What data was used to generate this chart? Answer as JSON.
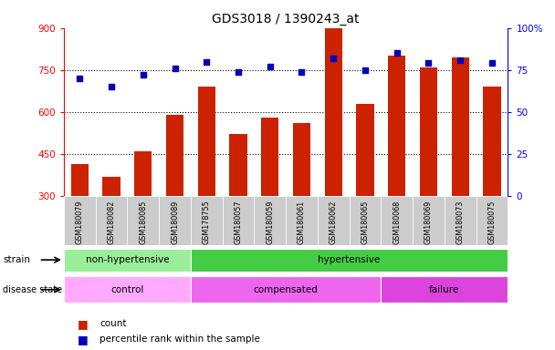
{
  "title": "GDS3018 / 1390243_at",
  "samples": [
    "GSM180079",
    "GSM180082",
    "GSM180085",
    "GSM180089",
    "GSM178755",
    "GSM180057",
    "GSM180059",
    "GSM180061",
    "GSM180062",
    "GSM180065",
    "GSM180068",
    "GSM180069",
    "GSM180073",
    "GSM180075"
  ],
  "counts": [
    415,
    370,
    460,
    590,
    690,
    520,
    580,
    560,
    900,
    630,
    800,
    760,
    795,
    690
  ],
  "percentile_ranks": [
    70,
    65,
    72,
    76,
    80,
    74,
    77,
    74,
    82,
    75,
    85,
    79,
    81,
    79
  ],
  "strain_groups": [
    {
      "label": "non-hypertensive",
      "start": 0,
      "end": 4,
      "color": "#99EE99"
    },
    {
      "label": "hypertensive",
      "start": 4,
      "end": 14,
      "color": "#44CC44"
    }
  ],
  "disease_groups": [
    {
      "label": "control",
      "start": 0,
      "end": 4,
      "color": "#FFAAFF"
    },
    {
      "label": "compensated",
      "start": 4,
      "end": 10,
      "color": "#EE66EE"
    },
    {
      "label": "failure",
      "start": 10,
      "end": 14,
      "color": "#DD44DD"
    }
  ],
  "bar_color": "#CC2200",
  "dot_color": "#0000BB",
  "ylim_left": [
    300,
    900
  ],
  "ylim_right": [
    0,
    100
  ],
  "yticks_left": [
    300,
    450,
    600,
    750,
    900
  ],
  "yticks_right": [
    0,
    25,
    50,
    75,
    100
  ],
  "bg_color": "#FFFFFF",
  "bar_bg_color": "#CCCCCC",
  "grid_color": "#000000"
}
